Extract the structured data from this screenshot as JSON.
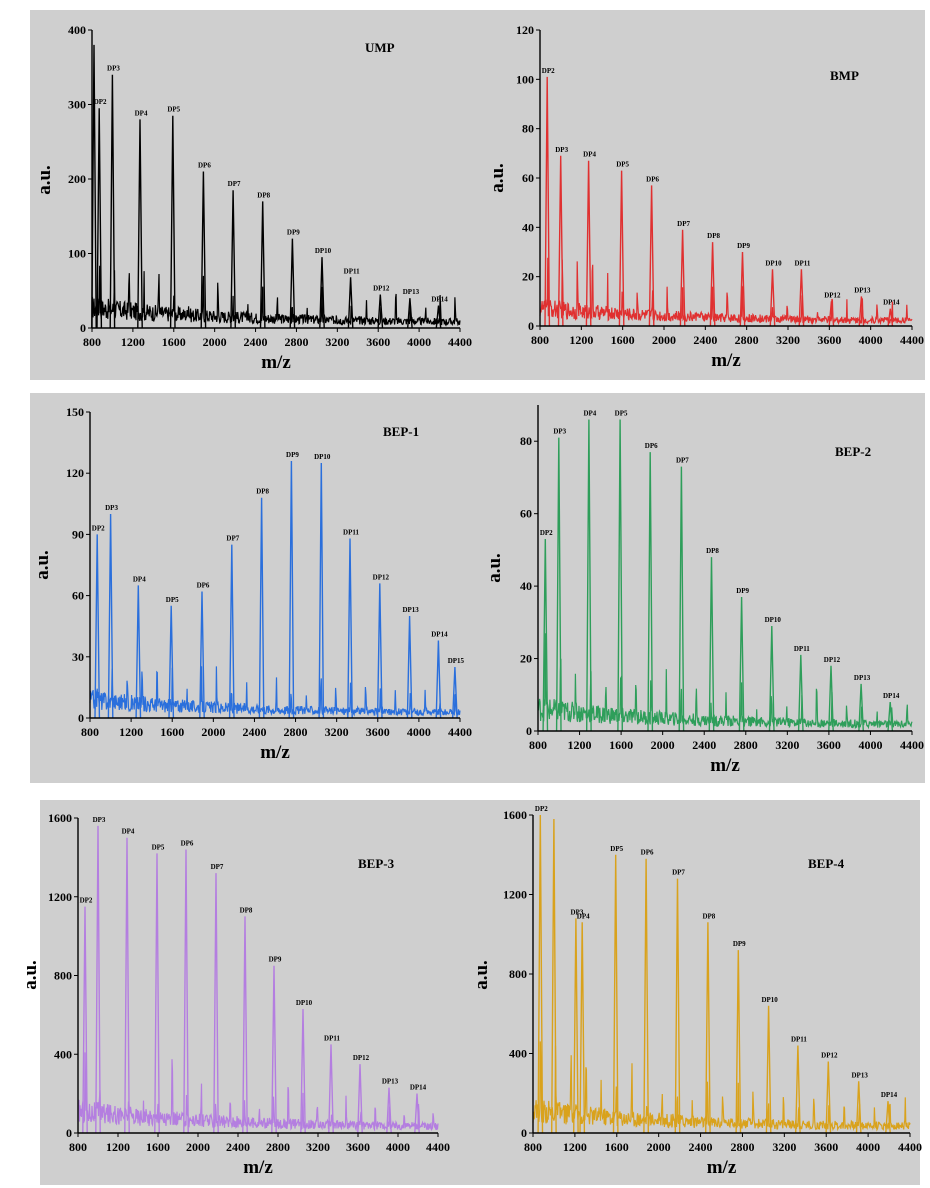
{
  "chart_data": [
    {
      "type": "line",
      "title": "UMP",
      "xlabel": "m/z",
      "ylabel": "a.u.",
      "xlim": [
        800,
        4400
      ],
      "ylim": [
        0,
        400
      ],
      "xticks": [
        800,
        1200,
        1600,
        2000,
        2400,
        2800,
        3200,
        3600,
        4000,
        4400
      ],
      "yticks": [
        0,
        100,
        200,
        300,
        400
      ],
      "color": "#000000",
      "grid": false,
      "series": [
        {
          "peaks": [
            {
              "x": 820,
              "y": 380,
              "label": ""
            },
            {
              "x": 870,
              "y": 295,
              "label": "DP2"
            },
            {
              "x": 1000,
              "y": 340,
              "label": "DP3"
            },
            {
              "x": 1270,
              "y": 280,
              "label": "DP4"
            },
            {
              "x": 1590,
              "y": 285,
              "label": "DP5"
            },
            {
              "x": 1890,
              "y": 210,
              "label": "DP6"
            },
            {
              "x": 2180,
              "y": 185,
              "label": "DP7"
            },
            {
              "x": 2470,
              "y": 170,
              "label": "DP8"
            },
            {
              "x": 2760,
              "y": 120,
              "label": "DP9"
            },
            {
              "x": 3050,
              "y": 95,
              "label": "DP10"
            },
            {
              "x": 3330,
              "y": 68,
              "label": "DP11"
            },
            {
              "x": 3620,
              "y": 45,
              "label": "DP12"
            },
            {
              "x": 3910,
              "y": 40,
              "label": "DP13"
            },
            {
              "x": 4190,
              "y": 30,
              "label": "DP14"
            }
          ]
        }
      ]
    },
    {
      "type": "line",
      "title": "BMP",
      "xlabel": "m/z",
      "ylabel": "a.u.",
      "xlim": [
        800,
        4400
      ],
      "ylim": [
        0,
        120
      ],
      "xticks": [
        800,
        1200,
        1600,
        2000,
        2400,
        2800,
        3200,
        3600,
        4000,
        4400
      ],
      "yticks": [
        0,
        20,
        40,
        60,
        80,
        100,
        120
      ],
      "color": "#e03030",
      "grid": false,
      "series": [
        {
          "peaks": [
            {
              "x": 870,
              "y": 101,
              "label": "DP2"
            },
            {
              "x": 1000,
              "y": 69,
              "label": "DP3"
            },
            {
              "x": 1270,
              "y": 67,
              "label": "DP4"
            },
            {
              "x": 1590,
              "y": 63,
              "label": "DP5"
            },
            {
              "x": 1880,
              "y": 57,
              "label": "DP6"
            },
            {
              "x": 2180,
              "y": 39,
              "label": "DP7"
            },
            {
              "x": 2470,
              "y": 34,
              "label": "DP8"
            },
            {
              "x": 2760,
              "y": 30,
              "label": "DP9"
            },
            {
              "x": 3050,
              "y": 23,
              "label": "DP10"
            },
            {
              "x": 3330,
              "y": 23,
              "label": "DP11"
            },
            {
              "x": 3620,
              "y": 10,
              "label": "DP12"
            },
            {
              "x": 3910,
              "y": 12,
              "label": "DP13"
            },
            {
              "x": 4190,
              "y": 7,
              "label": "DP14"
            }
          ]
        }
      ]
    },
    {
      "type": "line",
      "title": "BEP-1",
      "xlabel": "m/z",
      "ylabel": "a.u.",
      "xlim": [
        800,
        4400
      ],
      "ylim": [
        0,
        150
      ],
      "xticks": [
        800,
        1200,
        1600,
        2000,
        2400,
        2800,
        3200,
        3600,
        4000,
        4400
      ],
      "yticks": [
        0,
        30,
        60,
        90,
        120,
        150
      ],
      "color": "#2a6fdc",
      "grid": false,
      "series": [
        {
          "peaks": [
            {
              "x": 870,
              "y": 90,
              "label": "DP2"
            },
            {
              "x": 1000,
              "y": 100,
              "label": "DP3"
            },
            {
              "x": 1270,
              "y": 65,
              "label": "DP4"
            },
            {
              "x": 1590,
              "y": 55,
              "label": "DP5"
            },
            {
              "x": 1890,
              "y": 62,
              "label": "DP6"
            },
            {
              "x": 2180,
              "y": 85,
              "label": "DP7"
            },
            {
              "x": 2470,
              "y": 108,
              "label": "DP8"
            },
            {
              "x": 2760,
              "y": 126,
              "label": "DP9"
            },
            {
              "x": 3050,
              "y": 125,
              "label": "DP10"
            },
            {
              "x": 3330,
              "y": 88,
              "label": "DP11"
            },
            {
              "x": 3620,
              "y": 66,
              "label": "DP12"
            },
            {
              "x": 3910,
              "y": 50,
              "label": "DP13"
            },
            {
              "x": 4190,
              "y": 38,
              "label": "DP14"
            },
            {
              "x": 4350,
              "y": 25,
              "label": "DP15"
            }
          ]
        }
      ]
    },
    {
      "type": "line",
      "title": "BEP-2",
      "xlabel": "m/z",
      "ylabel": "a.u.",
      "xlim": [
        800,
        4400
      ],
      "ylim": [
        0,
        90
      ],
      "xticks": [
        800,
        1200,
        1600,
        2000,
        2400,
        2800,
        3200,
        3600,
        4000,
        4400
      ],
      "yticks": [
        0,
        20,
        40,
        60,
        80
      ],
      "color": "#2e9e5a",
      "grid": false,
      "series": [
        {
          "peaks": [
            {
              "x": 870,
              "y": 53,
              "label": "DP2"
            },
            {
              "x": 1000,
              "y": 81,
              "label": "DP3"
            },
            {
              "x": 1290,
              "y": 86,
              "label": "DP4"
            },
            {
              "x": 1590,
              "y": 86,
              "label": "DP5"
            },
            {
              "x": 1880,
              "y": 77,
              "label": "DP6"
            },
            {
              "x": 2180,
              "y": 73,
              "label": "DP7"
            },
            {
              "x": 2470,
              "y": 48,
              "label": "DP8"
            },
            {
              "x": 2760,
              "y": 37,
              "label": "DP9"
            },
            {
              "x": 3050,
              "y": 29,
              "label": "DP10"
            },
            {
              "x": 3330,
              "y": 21,
              "label": "DP11"
            },
            {
              "x": 3620,
              "y": 18,
              "label": "DP12"
            },
            {
              "x": 3910,
              "y": 13,
              "label": "DP13"
            },
            {
              "x": 4190,
              "y": 8,
              "label": "DP14"
            }
          ]
        }
      ]
    },
    {
      "type": "line",
      "title": "BEP-3",
      "xlabel": "m/z",
      "ylabel": "a.u.",
      "xlim": [
        800,
        4400
      ],
      "ylim": [
        0,
        1600
      ],
      "xticks": [
        800,
        1200,
        1600,
        2000,
        2400,
        2800,
        3200,
        3600,
        4000,
        4400
      ],
      "yticks": [
        0,
        400,
        800,
        1200,
        1600
      ],
      "color": "#b47ee0",
      "grid": false,
      "series": [
        {
          "peaks": [
            {
              "x": 870,
              "y": 1150,
              "label": "DP2"
            },
            {
              "x": 1000,
              "y": 1560,
              "label": "DP3"
            },
            {
              "x": 1290,
              "y": 1500,
              "label": "DP4"
            },
            {
              "x": 1590,
              "y": 1420,
              "label": "DP5"
            },
            {
              "x": 1880,
              "y": 1440,
              "label": "DP6"
            },
            {
              "x": 2180,
              "y": 1320,
              "label": "DP7"
            },
            {
              "x": 2470,
              "y": 1100,
              "label": "DP8"
            },
            {
              "x": 2760,
              "y": 850,
              "label": "DP9"
            },
            {
              "x": 3050,
              "y": 630,
              "label": "DP10"
            },
            {
              "x": 3330,
              "y": 450,
              "label": "DP11"
            },
            {
              "x": 3620,
              "y": 350,
              "label": "DP12"
            },
            {
              "x": 3910,
              "y": 230,
              "label": "DP13"
            },
            {
              "x": 4190,
              "y": 200,
              "label": "DP14"
            }
          ]
        }
      ]
    },
    {
      "type": "line",
      "title": "BEP-4",
      "xlabel": "m/z",
      "ylabel": "a.u.",
      "xlim": [
        800,
        4400
      ],
      "ylim": [
        0,
        1600
      ],
      "xticks": [
        800,
        1200,
        1600,
        2000,
        2400,
        2800,
        3200,
        3600,
        4000,
        4400
      ],
      "yticks": [
        0,
        400,
        800,
        1200,
        1600
      ],
      "color": "#d9a21c",
      "grid": false,
      "series": [
        {
          "peaks": [
            {
              "x": 870,
              "y": 1600,
              "label": "DP2"
            },
            {
              "x": 1000,
              "y": 1580,
              "label": ""
            },
            {
              "x": 1210,
              "y": 1080,
              "label": "DP3"
            },
            {
              "x": 1270,
              "y": 1060,
              "label": "DP4"
            },
            {
              "x": 1590,
              "y": 1400,
              "label": "DP5"
            },
            {
              "x": 1880,
              "y": 1380,
              "label": "DP6"
            },
            {
              "x": 2180,
              "y": 1280,
              "label": "DP7"
            },
            {
              "x": 2470,
              "y": 1060,
              "label": "DP8"
            },
            {
              "x": 2760,
              "y": 920,
              "label": "DP9"
            },
            {
              "x": 3050,
              "y": 640,
              "label": "DP10"
            },
            {
              "x": 3330,
              "y": 440,
              "label": "DP11"
            },
            {
              "x": 3620,
              "y": 360,
              "label": "DP12"
            },
            {
              "x": 3910,
              "y": 260,
              "label": "DP13"
            },
            {
              "x": 4190,
              "y": 160,
              "label": "DP14"
            }
          ]
        }
      ]
    }
  ]
}
